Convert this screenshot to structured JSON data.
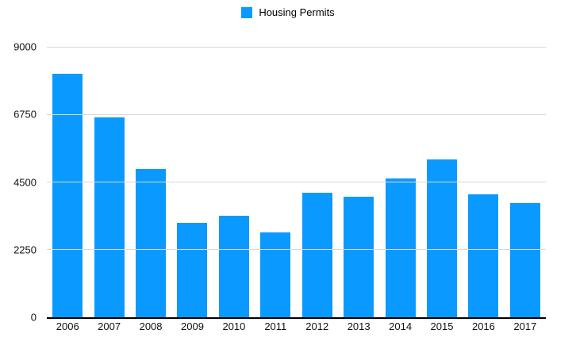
{
  "legend": {
    "label": "Housing Permits"
  },
  "chart_data": {
    "type": "bar",
    "title": "",
    "xlabel": "",
    "ylabel": "",
    "series_name": "Housing Permits",
    "categories": [
      "2006",
      "2007",
      "2008",
      "2009",
      "2010",
      "2011",
      "2012",
      "2013",
      "2014",
      "2015",
      "2016",
      "2017"
    ],
    "values": [
      8100,
      6650,
      4940,
      3130,
      3370,
      2820,
      4140,
      4020,
      4620,
      5250,
      4100,
      3800
    ],
    "ylim": [
      0,
      9000
    ],
    "yticks": [
      0,
      2250,
      4500,
      6750,
      9000
    ],
    "grid": true,
    "legend_position": "top",
    "bar_color": "#0A9AFF",
    "gridline_color": "#D9D9D9",
    "axis_line_color": "#000000",
    "text_color": "#111111"
  }
}
